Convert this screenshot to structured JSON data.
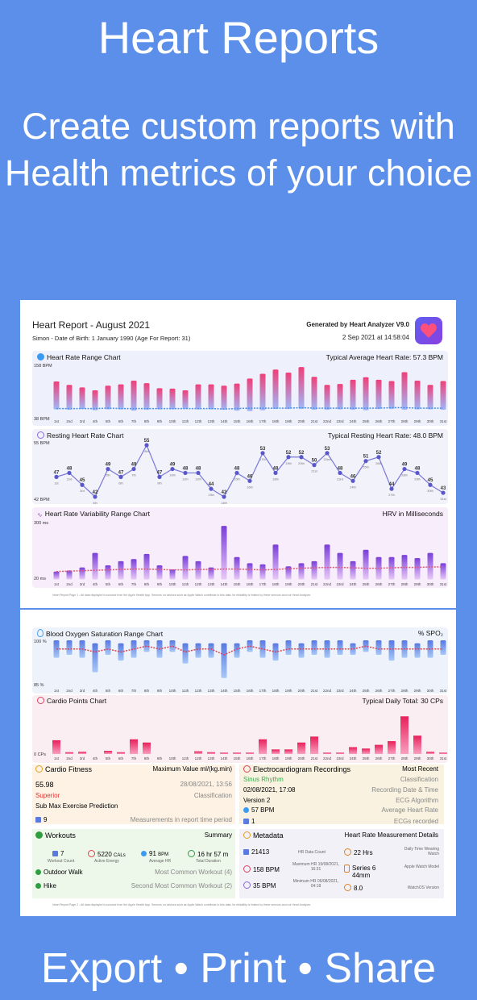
{
  "hero": {
    "title": "Heart Reports",
    "subtitle": "Create custom reports with Health metrics of your choice",
    "footer": "Export • Print • Share"
  },
  "report1": {
    "title": "Heart Report - August 2021",
    "subject": "Simon - Date of Birth: 1 January 1990 (Age For Report:  31)",
    "generated": "Generated by Heart Analyzer V9.0",
    "date": "2 Sep 2021 at 14:58:04",
    "footnote": "Heart Report Page 1  -  All data displayed is sourced from the Apple Health App. Sensors on devices such as Apple Watch contribute to this data. Its reliability is limited by these sensors and not Heart Analyzer.",
    "accent": "#e84070"
  },
  "report2": {
    "footnote": "Heart Report Page 2  -  All data displayed is sourced from the Apple Health App. Sensors on devices such as Apple Watch contribute to this data. Its reliability is limited by these sensors and not Heart Analyzer."
  },
  "days": [
    "1st",
    "2nd",
    "3rd",
    "4th",
    "5th",
    "6th",
    "7th",
    "8th",
    "9th",
    "10th",
    "11th",
    "12th",
    "13th",
    "14th",
    "15th",
    "16th",
    "17th",
    "18th",
    "19th",
    "20th",
    "21st",
    "22nd",
    "23rd",
    "24th",
    "25th",
    "26th",
    "27th",
    "28th",
    "29th",
    "30th",
    "31st"
  ],
  "chart_data": [
    {
      "type": "bar",
      "title": "Heart Rate Range Chart",
      "summary": "Typical Average Heart Rate: 57.3 BPM",
      "y_top_label": "158 BPM",
      "y_bottom_label": "38 BPM",
      "ylim": [
        38,
        158
      ],
      "ranges": [
        [
          52,
          118
        ],
        [
          51,
          110
        ],
        [
          53,
          104
        ],
        [
          50,
          97
        ],
        [
          52,
          108
        ],
        [
          52,
          111
        ],
        [
          49,
          120
        ],
        [
          51,
          114
        ],
        [
          52,
          102
        ],
        [
          52,
          101
        ],
        [
          53,
          97
        ],
        [
          52,
          111
        ],
        [
          52,
          111
        ],
        [
          51,
          108
        ],
        [
          49,
          113
        ],
        [
          48,
          125
        ],
        [
          50,
          136
        ],
        [
          53,
          146
        ],
        [
          53,
          139
        ],
        [
          53,
          152
        ],
        [
          51,
          129
        ],
        [
          51,
          110
        ],
        [
          52,
          112
        ],
        [
          51,
          122
        ],
        [
          50,
          128
        ],
        [
          53,
          122
        ],
        [
          53,
          119
        ],
        [
          51,
          140
        ],
        [
          52,
          120
        ],
        [
          52,
          110
        ],
        [
          51,
          119
        ]
      ],
      "avg": [
        54,
        54,
        54,
        54,
        55,
        54,
        54,
        54,
        54,
        54,
        54,
        54,
        54,
        53,
        54,
        55,
        55,
        55,
        55,
        56,
        55,
        55,
        55,
        55,
        55,
        55,
        56,
        56,
        55,
        55,
        55
      ]
    },
    {
      "type": "line",
      "title": "Resting Heart Rate Chart",
      "summary": "Typical Resting Heart Rate: 48.0 BPM",
      "y_top_label": "55 BPM",
      "y_bottom_label": "42 BPM",
      "ylim": [
        42,
        55
      ],
      "values": [
        47,
        48,
        45,
        42,
        49,
        47,
        49,
        55,
        47,
        49,
        48,
        48,
        44,
        42,
        48,
        46,
        53,
        48,
        52,
        52,
        50,
        53,
        48,
        46,
        51,
        52,
        44,
        49,
        48,
        45,
        43
      ]
    },
    {
      "type": "bar",
      "title": "Heart Rate Variability Range Chart",
      "summary": "HRV in Milliseconds",
      "y_top_label": "300 ms",
      "y_bottom_label": "20 ms",
      "ylim": [
        20,
        300
      ],
      "ranges": [
        [
          22,
          60
        ],
        [
          22,
          65
        ],
        [
          22,
          80
        ],
        [
          22,
          150
        ],
        [
          22,
          90
        ],
        [
          22,
          110
        ],
        [
          22,
          120
        ],
        [
          22,
          145
        ],
        [
          22,
          90
        ],
        [
          22,
          70
        ],
        [
          22,
          135
        ],
        [
          22,
          110
        ],
        [
          22,
          80
        ],
        [
          22,
          280
        ],
        [
          22,
          130
        ],
        [
          22,
          100
        ],
        [
          22,
          95
        ],
        [
          22,
          190
        ],
        [
          22,
          85
        ],
        [
          22,
          100
        ],
        [
          22,
          110
        ],
        [
          22,
          190
        ],
        [
          22,
          150
        ],
        [
          22,
          110
        ],
        [
          22,
          165
        ],
        [
          22,
          130
        ],
        [
          22,
          130
        ],
        [
          22,
          140
        ],
        [
          22,
          125
        ],
        [
          22,
          150
        ],
        [
          22,
          100
        ]
      ],
      "avg": [
        60,
        62,
        64,
        66,
        68,
        70,
        72,
        72,
        70,
        68,
        68,
        70,
        70,
        72,
        72,
        70,
        68,
        70,
        74,
        76,
        78,
        80,
        80,
        78,
        76,
        76,
        78,
        80,
        80,
        82,
        82
      ]
    },
    {
      "type": "bar",
      "title": "Blood Oxygen Saturation Range Chart",
      "summary": "% SPO₂",
      "y_top_label": "100 %",
      "y_bottom_label": "85 %",
      "ylim": [
        85,
        100
      ],
      "ranges": [
        [
          94,
          100
        ],
        [
          95,
          100
        ],
        [
          94,
          100
        ],
        [
          89,
          99
        ],
        [
          95,
          100
        ],
        [
          93,
          99
        ],
        [
          94,
          100
        ],
        [
          96,
          100
        ],
        [
          94,
          100
        ],
        [
          96,
          100
        ],
        [
          92,
          99
        ],
        [
          94,
          99
        ],
        [
          94,
          99
        ],
        [
          87,
          99
        ],
        [
          94,
          99
        ],
        [
          96,
          100
        ],
        [
          94,
          100
        ],
        [
          93,
          99
        ],
        [
          95,
          100
        ],
        [
          94,
          99
        ],
        [
          95,
          100
        ],
        [
          94,
          100
        ],
        [
          95,
          100
        ],
        [
          95,
          99
        ],
        [
          96,
          100
        ],
        [
          95,
          100
        ],
        [
          93,
          100
        ],
        [
          94,
          100
        ],
        [
          94,
          99
        ],
        [
          94,
          100
        ],
        [
          95,
          100
        ]
      ],
      "avg": [
        97,
        97,
        97,
        96,
        97,
        96,
        97,
        98,
        97,
        98,
        96,
        97,
        97,
        95,
        97,
        98,
        97,
        96,
        97,
        97,
        97,
        97,
        97,
        97,
        98,
        97,
        97,
        97,
        97,
        97,
        97
      ]
    },
    {
      "type": "bar",
      "title": "Cardio Points Chart",
      "summary": "Typical Daily Total: 30 CPs",
      "y_bottom_label": "0 CPs",
      "ylim": [
        0,
        100
      ],
      "values": [
        30,
        4,
        5,
        0,
        7,
        4,
        32,
        25,
        0,
        0,
        0,
        6,
        4,
        3,
        3,
        3,
        32,
        10,
        10,
        25,
        38,
        3,
        3,
        15,
        12,
        20,
        28,
        82,
        40,
        5,
        3
      ]
    }
  ],
  "cardio_fitness": {
    "title": "Cardio Fitness",
    "right": "Maximum Value ml/(kg.min)",
    "value": "55.98",
    "date": "28/08/2021, 13:56",
    "class_value": "Superior",
    "class_label": "Classification",
    "prediction": "Sub Max Exercise Prediction",
    "count": "9",
    "count_label": "Measurements in report time period"
  },
  "ecg": {
    "title": "Electrocardiogram Recordings",
    "right": "Most Recent",
    "rhythm": "Sinus Rhythm",
    "rhythm_label": "Classification",
    "date": "02/08/2021, 17:08",
    "date_label": "Recording Date & Time",
    "version": "Version 2",
    "version_label": "ECG Algorithm",
    "bpm": "57 BPM",
    "bpm_label": "Average Heart Rate",
    "count": "1",
    "count_label": "ECGs recorded"
  },
  "workouts": {
    "title": "Workouts",
    "right": "Summary",
    "count": "7",
    "count_label": "Workout Count",
    "energy": "5220",
    "energy_unit": "CALs",
    "energy_label": "Active Energy",
    "hr": "91",
    "hr_unit": "BPM",
    "hr_label": "Average HR",
    "duration": "16 hr 57 m",
    "duration_label": "Total Duration",
    "w1": "Outdoor Walk",
    "w1_label": "Most Common Workout (4)",
    "w2": "Hike",
    "w2_label": "Second Most Common Workout (2)"
  },
  "metadata": {
    "title": "Metadata",
    "right": "Heart Rate Measurement Details",
    "count": "21413",
    "count_label": "HR Data Count",
    "daily": "22 Hrs",
    "daily_label": "Daily Time Wearing Watch",
    "max": "158 BPM",
    "max_label": "Maximum HR 19/08/2021, 16:31",
    "model": "Series 6 44mm",
    "model_label": "Apple Watch Model",
    "min": "35 BPM",
    "min_label": "Minimum HR 06/08/2021, 04:18",
    "os": "8.0",
    "os_label": "WatchOS Version"
  }
}
